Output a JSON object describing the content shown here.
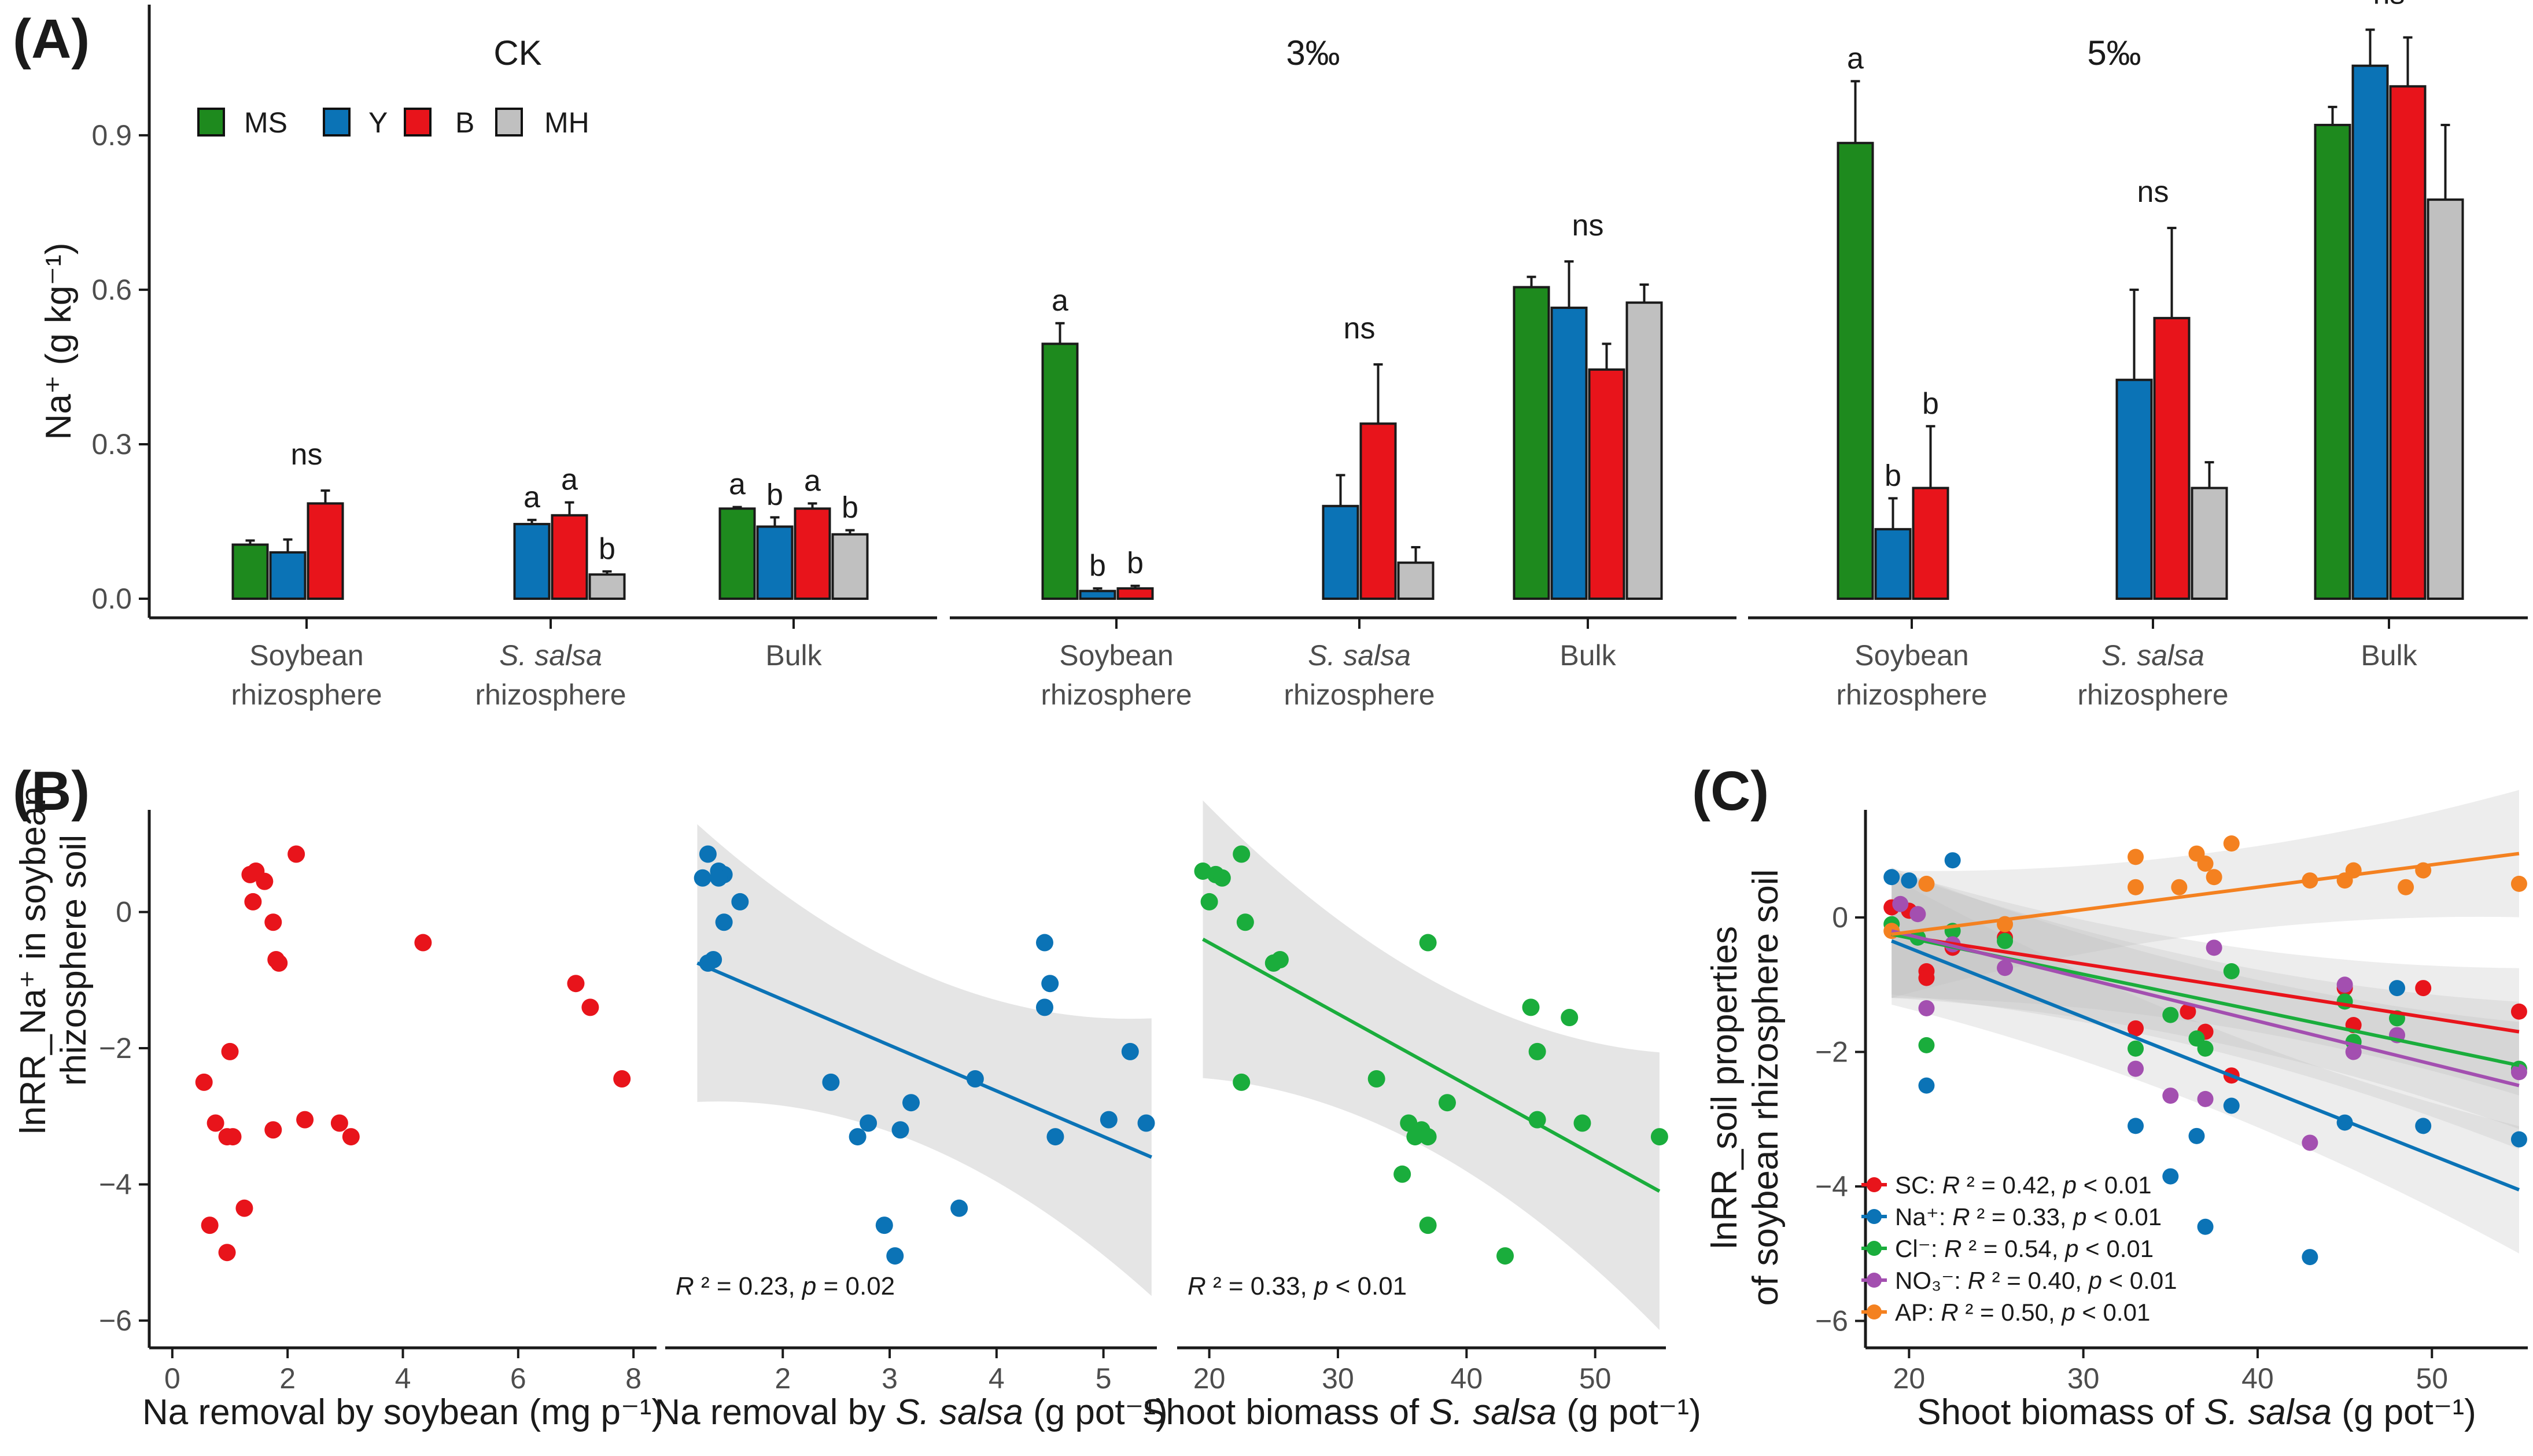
{
  "panels": {
    "A": "(A)",
    "B": "(B)",
    "C": "(C)"
  },
  "colors": {
    "MS": "#1e8a1e",
    "Y": "#0b73b6",
    "B": "#e8141b",
    "MH": "#c0c0c0"
  },
  "panelA": {
    "facets": [
      "CK",
      "3‰",
      "5‰"
    ],
    "ylabel": "Na⁺ (g kg⁻¹)",
    "yticks": [
      "0.0",
      "0.3",
      "0.6",
      "0.9"
    ],
    "ylim": [
      0,
      1.12
    ],
    "groups_line1": [
      "Soybean",
      "S. salsa",
      "Bulk"
    ],
    "groups_line2": [
      "rhizosphere",
      "rhizosphere",
      ""
    ],
    "legend": [
      "MS",
      "Y",
      "B",
      "MH"
    ]
  },
  "chart_data": [
    {
      "type": "bar",
      "title": "CK",
      "ylabel": "Na⁺ (g kg⁻¹)",
      "ylim": [
        0,
        1.12
      ],
      "categories": [
        "Soybean rhizosphere",
        "S. salsa rhizosphere",
        "Bulk"
      ],
      "groups": [
        {
          "bars": [
            {
              "series": "MS",
              "value": 0.105,
              "err": 0.008
            },
            {
              "series": "Y",
              "value": 0.09,
              "err": 0.025
            },
            {
              "series": "B",
              "value": 0.185,
              "err": 0.025
            }
          ],
          "letters": [
            "ns"
          ]
        },
        {
          "bars": [
            {
              "series": "Y",
              "value": 0.145,
              "err": 0.008,
              "letter": "a"
            },
            {
              "series": "B",
              "value": 0.162,
              "err": 0.025,
              "letter": "a"
            },
            {
              "series": "MH",
              "value": 0.047,
              "err": 0.006,
              "letter": "b"
            }
          ]
        },
        {
          "bars": [
            {
              "series": "MS",
              "value": 0.175,
              "err": 0.003,
              "letter": "a"
            },
            {
              "series": "Y",
              "value": 0.14,
              "err": 0.018,
              "letter": "b"
            },
            {
              "series": "B",
              "value": 0.175,
              "err": 0.01,
              "letter": "a"
            },
            {
              "series": "MH",
              "value": 0.125,
              "err": 0.008,
              "letter": "b"
            }
          ]
        }
      ]
    },
    {
      "type": "bar",
      "title": "3‰",
      "categories": [
        "Soybean rhizosphere",
        "S. salsa rhizosphere",
        "Bulk"
      ],
      "groups": [
        {
          "bars": [
            {
              "series": "MS",
              "value": 0.495,
              "err": 0.04,
              "letter": "a"
            },
            {
              "series": "Y",
              "value": 0.015,
              "err": 0.005,
              "letter": "b"
            },
            {
              "series": "B",
              "value": 0.02,
              "err": 0.005,
              "letter": "b"
            }
          ]
        },
        {
          "bars": [
            {
              "series": "Y",
              "value": 0.18,
              "err": 0.06
            },
            {
              "series": "B",
              "value": 0.34,
              "err": 0.115
            },
            {
              "series": "MH",
              "value": 0.07,
              "err": 0.03
            }
          ],
          "letters": [
            "ns"
          ]
        },
        {
          "bars": [
            {
              "series": "MS",
              "value": 0.605,
              "err": 0.02
            },
            {
              "series": "Y",
              "value": 0.565,
              "err": 0.09
            },
            {
              "series": "B",
              "value": 0.445,
              "err": 0.05
            },
            {
              "series": "MH",
              "value": 0.575,
              "err": 0.035
            }
          ],
          "letters": [
            "ns"
          ]
        }
      ]
    },
    {
      "type": "bar",
      "title": "5‰",
      "categories": [
        "Soybean rhizosphere",
        "S. salsa rhizosphere",
        "Bulk"
      ],
      "groups": [
        {
          "bars": [
            {
              "series": "MS",
              "value": 0.885,
              "err": 0.12,
              "letter": "a"
            },
            {
              "series": "Y",
              "value": 0.135,
              "err": 0.06,
              "letter": "b"
            },
            {
              "series": "B",
              "value": 0.215,
              "err": 0.12,
              "letter": "b"
            }
          ]
        },
        {
          "bars": [
            {
              "series": "Y",
              "value": 0.425,
              "err": 0.175
            },
            {
              "series": "B",
              "value": 0.545,
              "err": 0.175
            },
            {
              "series": "MH",
              "value": 0.215,
              "err": 0.05
            }
          ],
          "letters": [
            "ns"
          ]
        },
        {
          "bars": [
            {
              "series": "MS",
              "value": 0.92,
              "err": 0.035
            },
            {
              "series": "Y",
              "value": 1.035,
              "err": 0.07
            },
            {
              "series": "B",
              "value": 0.995,
              "err": 0.095
            },
            {
              "series": "MH",
              "value": 0.775,
              "err": 0.145
            }
          ],
          "letters": [
            "ns"
          ]
        }
      ]
    },
    {
      "type": "scatter",
      "ylabel_line1": "lnRR_Na⁺ in soybean",
      "ylabel_line2": "rhizosphere soil",
      "ylim": [
        -6.4,
        1.5
      ],
      "yticks": [
        "−6",
        "−4",
        "−2",
        "0"
      ],
      "xlabel": "Na removal by soybean (mg p⁻¹)",
      "xlim": [
        -0.4,
        8.4
      ],
      "xticks": [
        "0",
        "2",
        "4",
        "6",
        "8"
      ],
      "color": "#e8141b",
      "x": [
        2.15,
        1.45,
        1.35,
        1.6,
        1.75,
        1.4,
        1.8,
        1.85,
        4.35,
        7.0,
        7.25,
        7.8,
        1.0,
        0.55,
        0.75,
        0.95,
        1.05,
        2.3,
        1.75,
        2.9,
        3.1,
        0.65,
        1.25,
        0.95
      ],
      "y": [
        0.85,
        0.6,
        0.55,
        0.45,
        -0.15,
        0.15,
        -0.7,
        -0.75,
        -0.45,
        -1.05,
        -1.4,
        -2.45,
        -2.05,
        -2.5,
        -3.1,
        -3.3,
        -3.3,
        -3.05,
        -3.2,
        -3.1,
        -3.3,
        -4.6,
        -4.35,
        -5.0
      ]
    },
    {
      "type": "scatter",
      "xlabel_pre": "Na removal by ",
      "xlabel_it": "S. salsa",
      "xlabel_post": " (g pot⁻¹)",
      "xlim": [
        0.9,
        5.5
      ],
      "xticks": [
        "2",
        "3",
        "4",
        "5"
      ],
      "color": "#0b73b6",
      "stat": [
        "R",
        " ² = 0.23, ",
        "p",
        " = 0.02"
      ],
      "fit": {
        "x0": 1.2,
        "y0": -0.75,
        "x1": 5.45,
        "y1": -3.6
      },
      "x": [
        1.3,
        1.4,
        1.45,
        1.4,
        1.25,
        1.6,
        1.45,
        1.35,
        1.3,
        4.45,
        4.5,
        4.45,
        2.45,
        2.8,
        3.1,
        3.2,
        3.8,
        2.7,
        4.55,
        5.25,
        5.05,
        5.4,
        2.95,
        3.65,
        3.05
      ],
      "y": [
        0.85,
        0.6,
        0.55,
        0.5,
        0.5,
        0.15,
        -0.15,
        -0.7,
        -0.75,
        -0.45,
        -1.05,
        -1.4,
        -2.5,
        -3.1,
        -3.2,
        -2.8,
        -2.45,
        -3.3,
        -3.3,
        -2.05,
        -3.05,
        -3.1,
        -4.6,
        -4.35,
        -5.05
      ]
    },
    {
      "type": "scatter",
      "xlabel_pre": "Shoot biomass of ",
      "xlabel_it": "S. salsa",
      "xlabel_post": " (g pot⁻¹)",
      "xlim": [
        17.5,
        55.5
      ],
      "xticks": [
        "20",
        "30",
        "40",
        "50"
      ],
      "color": "#1aad3c",
      "stat": [
        "R",
        " ² = 0.33, ",
        "p",
        " < 0.01"
      ],
      "fit": {
        "x0": 19.5,
        "y0": -0.4,
        "x1": 55,
        "y1": -4.1
      },
      "x": [
        22.5,
        19.5,
        20.5,
        21.0,
        20.0,
        22.8,
        25.5,
        25.0,
        37.0,
        45.0,
        48.0,
        45.5,
        22.5,
        33.0,
        36.5,
        37.0,
        38.5,
        35.5,
        36.0,
        45.5,
        49.0,
        55.0,
        35.0,
        37.0,
        43.0
      ],
      "y": [
        0.85,
        0.6,
        0.55,
        0.5,
        0.15,
        -0.15,
        -0.7,
        -0.75,
        -0.45,
        -1.4,
        -1.55,
        -2.05,
        -2.5,
        -2.45,
        -3.2,
        -3.3,
        -2.8,
        -3.1,
        -3.3,
        -3.05,
        -3.1,
        -3.3,
        -3.85,
        -4.6,
        -5.05
      ]
    },
    {
      "type": "scatter",
      "ylabel_line1": "lnRR_soil properties",
      "ylabel_line2": "of soybean rhizosphere soil",
      "xlabel_pre": "Shoot biomass of ",
      "xlabel_it": "S. salsa",
      "xlabel_post": " (g pot⁻¹)",
      "xlim": [
        17.5,
        55.5
      ],
      "ylim": [
        -6.4,
        1.6
      ],
      "xticks": [
        "20",
        "30",
        "40",
        "50"
      ],
      "yticks": [
        "−6",
        "−4",
        "−2",
        "0"
      ],
      "series": [
        {
          "name": "SC",
          "label": "SC: ",
          "r2": " ² = 0.42, ",
          "p": " < 0.01",
          "color": "#e8141b",
          "fit": {
            "x0": 19,
            "y0": -0.25,
            "x1": 55,
            "y1": -1.7
          },
          "x": [
            19,
            20,
            21,
            22.5,
            25.5,
            33,
            36,
            37,
            38.5,
            45,
            45.5,
            49.5,
            55,
            21
          ],
          "y": [
            0.15,
            0.1,
            -0.8,
            -0.45,
            -0.3,
            -1.65,
            -1.4,
            -1.7,
            -2.35,
            -1.05,
            -1.6,
            -1.05,
            -1.4,
            -0.9
          ]
        },
        {
          "name": "Na⁺",
          "label": "Na⁺: ",
          "r2": " ² = 0.33, ",
          "p": " < 0.01",
          "color": "#0b73b6",
          "fit": {
            "x0": 19,
            "y0": -0.35,
            "x1": 55,
            "y1": -4.05
          },
          "x": [
            19,
            20,
            22.5,
            21,
            33,
            35,
            37,
            38.5,
            45,
            48,
            43,
            49.5,
            55,
            36.5
          ],
          "y": [
            0.6,
            0.55,
            0.85,
            -2.5,
            -3.1,
            -3.85,
            -4.6,
            -2.8,
            -3.05,
            -1.05,
            -5.05,
            -3.1,
            -3.3,
            -3.25
          ]
        },
        {
          "name": "Cl⁻",
          "label": "Cl⁻: ",
          "r2": " ² = 0.54, ",
          "p": " < 0.01",
          "color": "#1aad3c",
          "fit": {
            "x0": 19,
            "y0": -0.25,
            "x1": 55,
            "y1": -2.2
          },
          "x": [
            19,
            20.5,
            21,
            22.5,
            25.5,
            33,
            35,
            36.5,
            37,
            38.5,
            45,
            45.5,
            48,
            55
          ],
          "y": [
            -0.1,
            -0.3,
            -1.9,
            -0.2,
            -0.35,
            -1.95,
            -1.45,
            -1.8,
            -1.95,
            -0.8,
            -1.25,
            -1.85,
            -1.5,
            -2.25
          ]
        },
        {
          "name": "NO₃⁻",
          "label": "NO₃⁻: ",
          "r2": " ² = 0.40, ",
          "p": " < 0.01",
          "color": "#a34fb0",
          "fit": {
            "x0": 19,
            "y0": -0.2,
            "x1": 55,
            "y1": -2.5
          },
          "x": [
            19.5,
            20.5,
            21,
            22.5,
            25.5,
            33,
            35,
            37,
            37.5,
            43,
            45,
            45.5,
            48,
            55
          ],
          "y": [
            0.2,
            0.05,
            -1.35,
            -0.4,
            -0.75,
            -2.25,
            -2.65,
            -2.7,
            -0.45,
            -3.35,
            -1.0,
            -2.0,
            -1.75,
            -2.3
          ]
        },
        {
          "name": "AP",
          "label": "AP: ",
          "r2": " ² = 0.50, ",
          "p": " < 0.01",
          "color": "#f48120",
          "fit": {
            "x0": 19,
            "y0": -0.25,
            "x1": 55,
            "y1": 0.95
          },
          "x": [
            19,
            21,
            25.5,
            33,
            33,
            35.5,
            36.5,
            37,
            37.5,
            38.5,
            43,
            45,
            45.5,
            48.5,
            49.5,
            55
          ],
          "y": [
            -0.2,
            0.5,
            -0.1,
            0.45,
            0.9,
            0.45,
            0.95,
            0.8,
            0.6,
            1.1,
            0.55,
            0.55,
            0.7,
            0.45,
            0.7,
            0.5
          ]
        }
      ]
    }
  ]
}
